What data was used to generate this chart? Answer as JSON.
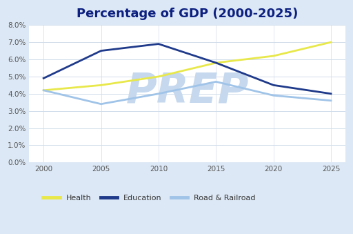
{
  "title": "Percentage of GDP (2000-2025)",
  "years": [
    2000,
    2005,
    2010,
    2015,
    2020,
    2025
  ],
  "health": [
    4.2,
    4.5,
    5.0,
    5.8,
    6.2,
    7.0
  ],
  "education": [
    4.9,
    6.5,
    6.9,
    5.8,
    4.5,
    4.0
  ],
  "road_railroad": [
    4.2,
    3.4,
    4.0,
    4.7,
    3.9,
    3.6
  ],
  "health_color": "#e8e84a",
  "education_color": "#1f3a8a",
  "road_color": "#a0c4e8",
  "ylim": [
    0.0,
    8.0
  ],
  "yticks": [
    0.0,
    1.0,
    2.0,
    3.0,
    4.0,
    5.0,
    6.0,
    7.0,
    8.0
  ],
  "xticks": [
    2000,
    2005,
    2010,
    2015,
    2020,
    2025
  ],
  "legend_labels": [
    "Health",
    "Education",
    "Road & Railroad"
  ],
  "background_color": "#ffffff",
  "outer_background": "#dce8f5",
  "plot_area_bg": "#ffffff",
  "grid_color": "#d0dcea",
  "title_color": "#0d2080",
  "title_fontsize": 13,
  "watermark_text": "PREP",
  "watermark_color": "#c5d8ee",
  "line_width": 2.0
}
